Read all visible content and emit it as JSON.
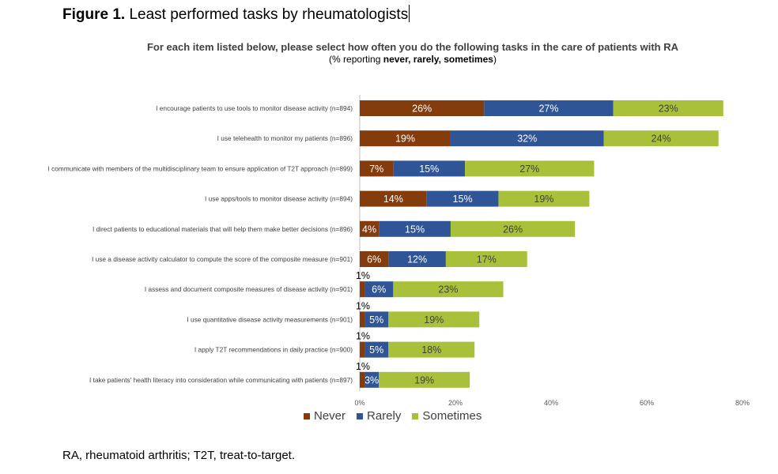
{
  "figure": {
    "label": "Figure 1.",
    "title": " Least performed tasks by rheumatologists",
    "footnote": "RA, rheumatoid arthritis; T2T, treat-to-target."
  },
  "colors": {
    "never": "#843c0c",
    "rarely": "#2f5597",
    "sometimes": "#a9c13a"
  },
  "chart_data": {
    "type": "bar",
    "orientation": "horizontal",
    "stacked": true,
    "title": "For each item listed below, please select how often you do the following tasks in the care of patients with RA",
    "subtitle_prefix": "(% reporting ",
    "subtitle_bold": "never, rarely, sometimes",
    "subtitle_suffix": ")",
    "categories": [
      "I encourage patients to use tools to monitor disease activity (n=894)",
      "I use telehealth to monitor my patients (n=896)",
      "I communicate with members of the multidisciplinary team to ensure application of T2T approach (n=899)",
      "I use apps/tools to monitor disease activity (n=894)",
      "I direct patients to educational materials that will help them make better decisions (n=896)",
      "I use a disease activity calculator to compute the score of the composite measure (n=901)",
      "I assess and document composite measures of disease activity (n=901)",
      "I use quantitative disease activity measurements (n=901)",
      "I apply T2T recommendations in daily practice (n=900)",
      "I take patients' health literacy into consideration while communicating with patients (n=897)"
    ],
    "series": [
      {
        "name": "Never",
        "values": [
          26,
          19,
          7,
          14,
          4,
          6,
          1,
          1,
          1,
          1
        ]
      },
      {
        "name": "Rarely",
        "values": [
          27,
          32,
          15,
          15,
          15,
          12,
          6,
          5,
          5,
          3
        ]
      },
      {
        "name": "Sometimes",
        "values": [
          23,
          24,
          27,
          19,
          26,
          17,
          23,
          19,
          18,
          19
        ]
      }
    ],
    "x_ticks": [
      "0%",
      "20%",
      "40%",
      "60%",
      "80%"
    ],
    "xlim": [
      0,
      80
    ],
    "legend_position": "bottom",
    "grid": false
  }
}
